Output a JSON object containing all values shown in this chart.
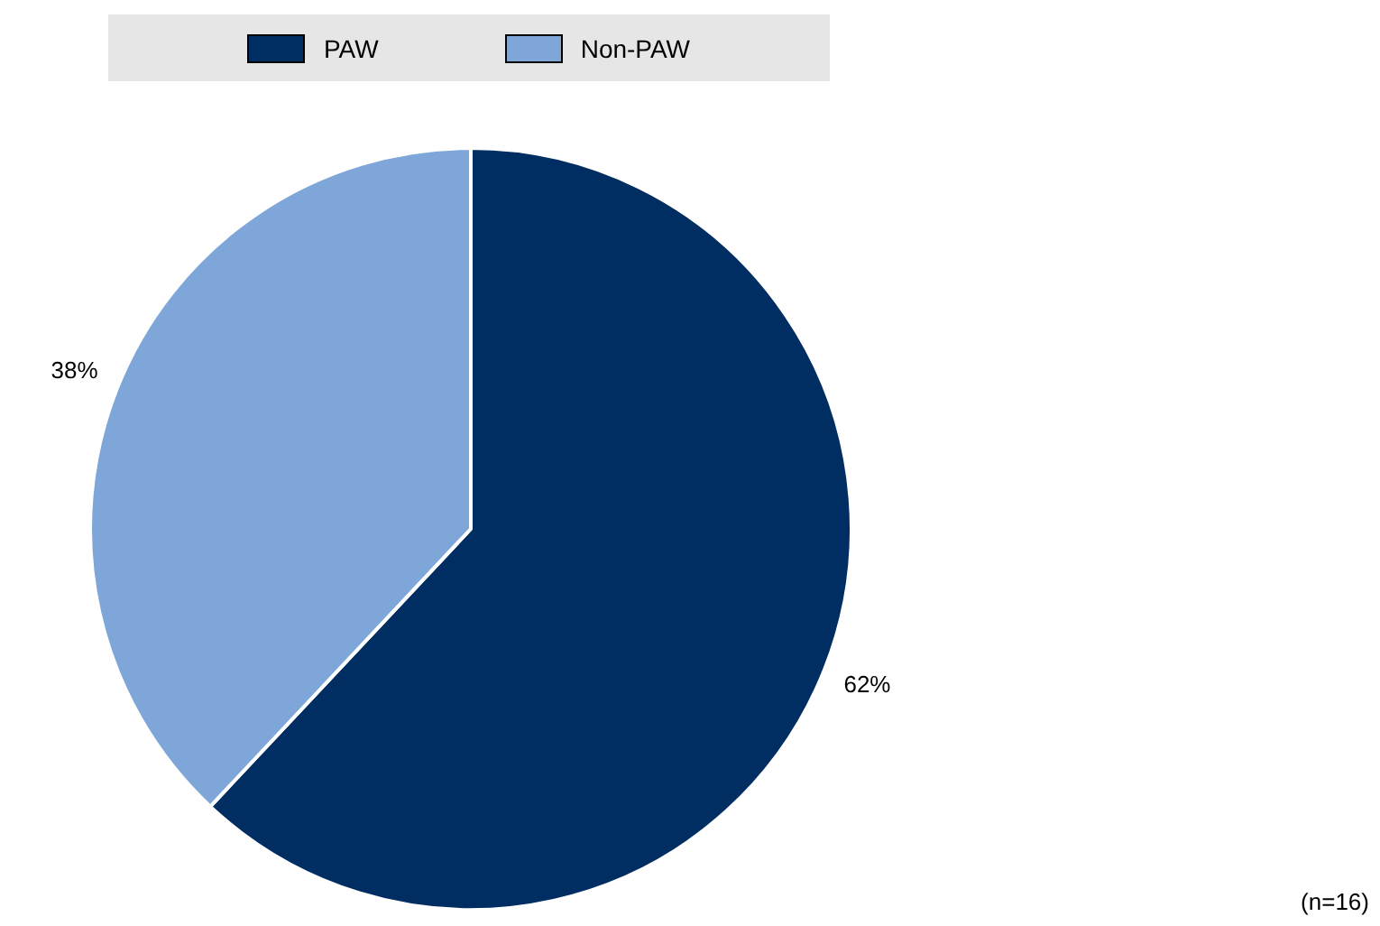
{
  "chart_data": {
    "type": "pie",
    "categories": [
      "PAW",
      "Non-PAW"
    ],
    "values": [
      62,
      38
    ],
    "colors": [
      "#002d62",
      "#7ea6d8"
    ],
    "value_labels": [
      "62%",
      "38%"
    ],
    "legend": "top",
    "annotations": [
      "(n=16)"
    ]
  }
}
